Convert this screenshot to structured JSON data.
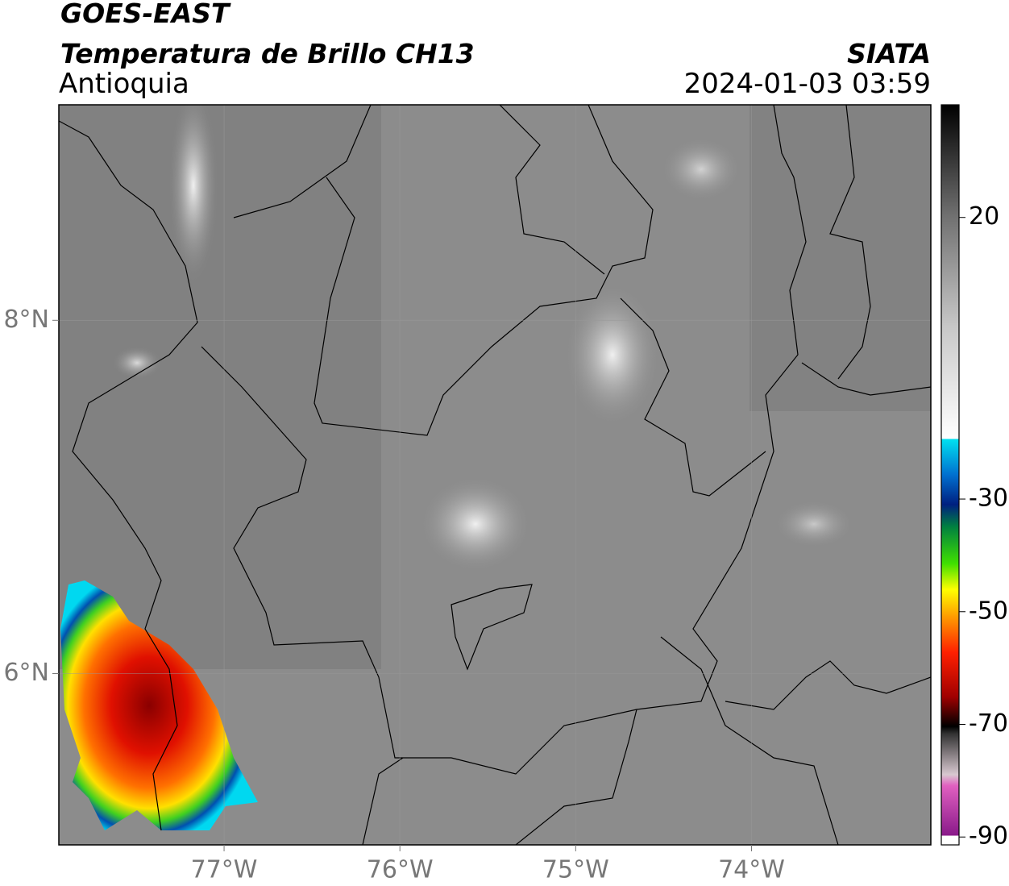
{
  "header": {
    "title": "GOES-EAST",
    "subtitle": "Temperatura de Brillo CH13",
    "region": "Antioquia",
    "source": "SIATA",
    "timestamp": "2024-01-03 03:59"
  },
  "map": {
    "xlim": [
      -77.94,
      -72.98
    ],
    "ylim": [
      5.03,
      9.22
    ],
    "xticks": [
      {
        "value": -77,
        "label": "77°W"
      },
      {
        "value": -76,
        "label": "76°W"
      },
      {
        "value": -75,
        "label": "75°W"
      },
      {
        "value": -74,
        "label": "74°W"
      }
    ],
    "yticks": [
      {
        "value": 6,
        "label": "6°N"
      },
      {
        "value": 8,
        "label": "8°N"
      }
    ],
    "grid": true
  },
  "colorbar": {
    "lim": [
      -91.4,
      40
    ],
    "ticks": [
      20,
      -30,
      -50,
      -70,
      -90
    ]
  }
}
